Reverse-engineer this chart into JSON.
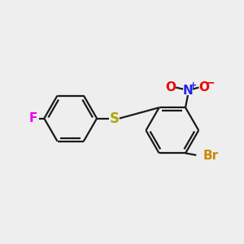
{
  "bg_color": "#eeeeee",
  "bond_color": "#1a1a1a",
  "bond_width": 1.6,
  "atom_colors": {
    "F": "#ee00ee",
    "S": "#aaaa00",
    "N": "#2222ee",
    "O": "#ee0000",
    "Br": "#cc8800",
    "C": "#1a1a1a"
  },
  "figsize": [
    3.0,
    3.0
  ],
  "dpi": 100,
  "xlim": [
    0,
    10
  ],
  "ylim": [
    0,
    10
  ]
}
